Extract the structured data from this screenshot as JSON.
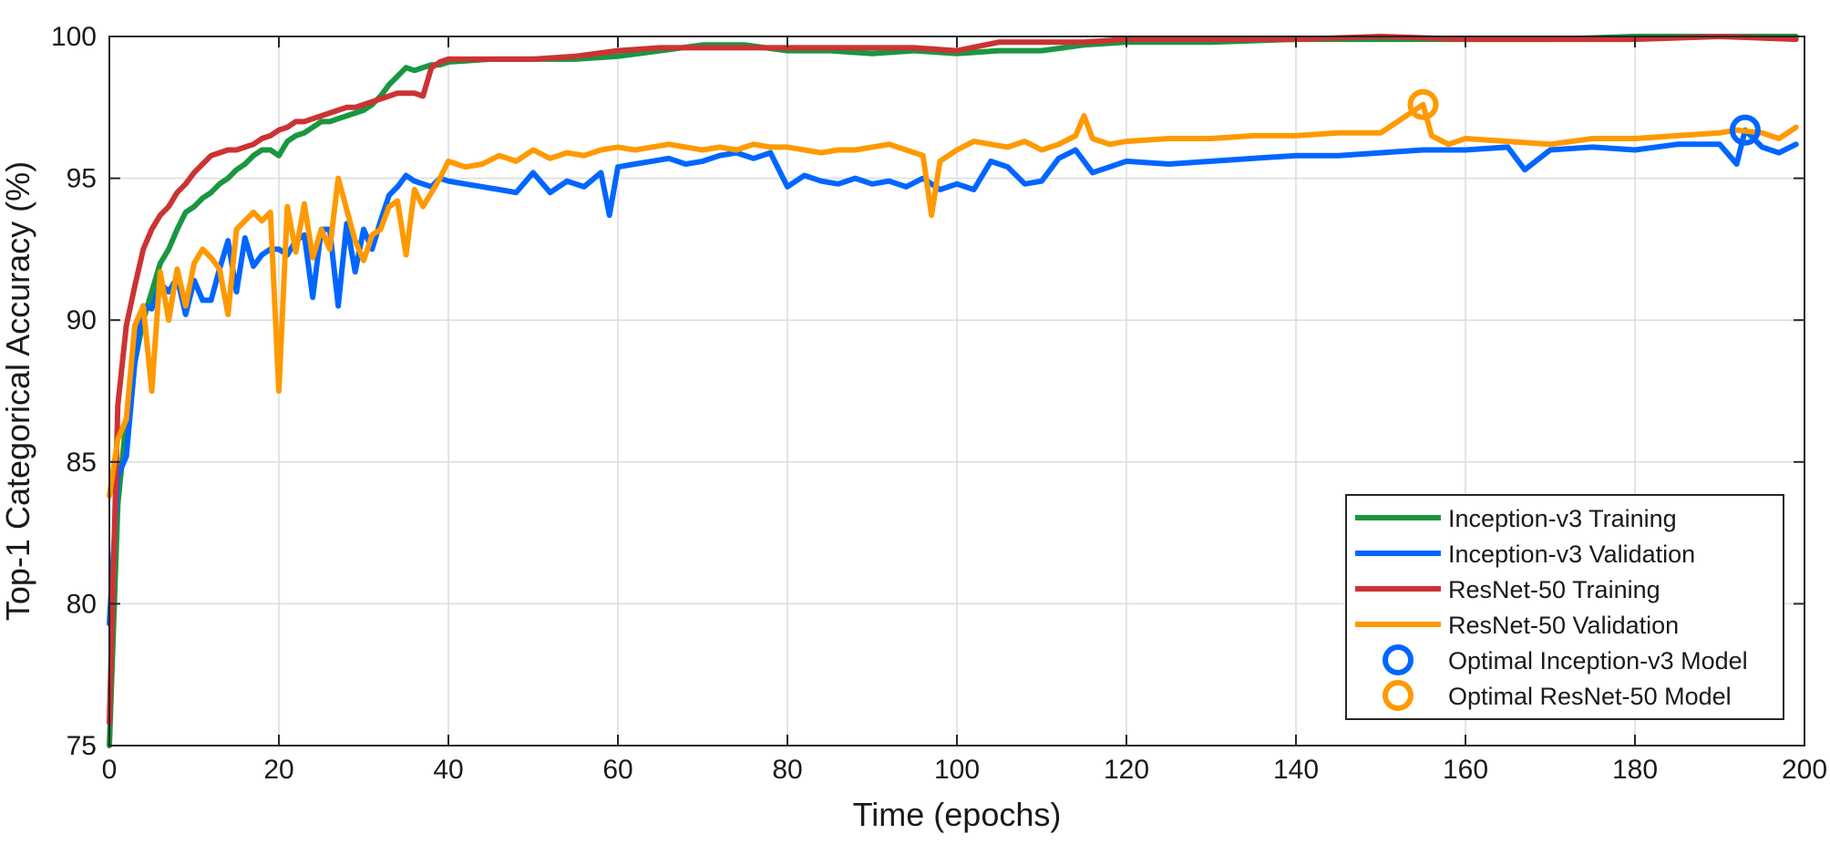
{
  "chart_data": {
    "type": "line",
    "title": "",
    "xlabel": "Time (epochs)",
    "ylabel": "Top-1 Categorical Accuracy (%)",
    "xlim": [
      0,
      200
    ],
    "ylim": [
      75,
      100
    ],
    "xticks": [
      0,
      20,
      40,
      60,
      80,
      100,
      120,
      140,
      160,
      180,
      200
    ],
    "yticks": [
      75,
      80,
      85,
      90,
      95,
      100
    ],
    "grid": true,
    "legend_position": "bottom-right",
    "colors": {
      "inception_training": "#1a9641",
      "inception_validation": "#0066ff",
      "resnet_training": "#cc3333",
      "resnet_validation": "#ff9900"
    },
    "series": [
      {
        "name": "Inception-v3 Training",
        "color": "#1a9641",
        "x": [
          0,
          1,
          2,
          3,
          4,
          5,
          6,
          7,
          8,
          9,
          10,
          11,
          12,
          13,
          14,
          15,
          16,
          17,
          18,
          19,
          20,
          21,
          22,
          23,
          24,
          25,
          26,
          27,
          28,
          29,
          30,
          31,
          32,
          33,
          34,
          35,
          36,
          37,
          38,
          39,
          40,
          45,
          50,
          55,
          60,
          65,
          70,
          75,
          80,
          85,
          90,
          95,
          100,
          105,
          110,
          115,
          120,
          130,
          140,
          150,
          160,
          170,
          180,
          190,
          199
        ],
        "y": [
          75.0,
          83.5,
          86.5,
          88.5,
          90.0,
          91.0,
          92.0,
          92.5,
          93.2,
          93.8,
          94.0,
          94.3,
          94.5,
          94.8,
          95.0,
          95.3,
          95.5,
          95.8,
          96.0,
          96.0,
          95.8,
          96.3,
          96.5,
          96.6,
          96.8,
          97.0,
          97.0,
          97.1,
          97.2,
          97.3,
          97.4,
          97.6,
          97.9,
          98.3,
          98.6,
          98.9,
          98.8,
          98.9,
          99.0,
          99.0,
          99.1,
          99.2,
          99.2,
          99.2,
          99.3,
          99.5,
          99.7,
          99.7,
          99.5,
          99.5,
          99.4,
          99.5,
          99.4,
          99.5,
          99.5,
          99.7,
          99.8,
          99.8,
          99.9,
          99.9,
          99.9,
          99.9,
          100.0,
          100.0,
          100.0
        ]
      },
      {
        "name": "Inception-v3 Validation",
        "color": "#0066ff",
        "x": [
          0,
          1,
          2,
          3,
          4,
          5,
          6,
          7,
          8,
          9,
          10,
          11,
          12,
          13,
          14,
          15,
          16,
          17,
          18,
          19,
          20,
          21,
          22,
          23,
          24,
          25,
          26,
          27,
          28,
          29,
          30,
          31,
          32,
          33,
          34,
          35,
          36,
          37,
          38,
          39,
          40,
          42,
          44,
          46,
          48,
          50,
          52,
          54,
          56,
          58,
          59,
          60,
          62,
          64,
          66,
          68,
          70,
          72,
          74,
          76,
          78,
          80,
          82,
          84,
          86,
          88,
          90,
          92,
          94,
          96,
          98,
          100,
          102,
          104,
          106,
          108,
          110,
          112,
          114,
          116,
          118,
          120,
          125,
          130,
          135,
          140,
          145,
          150,
          155,
          160,
          165,
          167,
          170,
          175,
          180,
          185,
          190,
          192,
          193,
          195,
          197,
          199
        ],
        "y": [
          79.3,
          84.5,
          85.2,
          88.5,
          90.5,
          90.4,
          91.3,
          91.0,
          91.5,
          90.2,
          91.4,
          90.7,
          90.7,
          91.8,
          92.8,
          91.0,
          92.9,
          91.9,
          92.3,
          92.5,
          92.5,
          92.3,
          92.8,
          93.0,
          90.8,
          93.2,
          93.2,
          90.5,
          93.4,
          91.7,
          93.2,
          92.5,
          93.5,
          94.4,
          94.7,
          95.1,
          94.9,
          94.8,
          94.7,
          95.0,
          94.9,
          94.8,
          94.7,
          94.6,
          94.5,
          95.2,
          94.5,
          94.9,
          94.7,
          95.2,
          93.7,
          95.4,
          95.5,
          95.6,
          95.7,
          95.5,
          95.6,
          95.8,
          95.9,
          95.7,
          95.9,
          94.7,
          95.1,
          94.9,
          94.8,
          95.0,
          94.8,
          94.9,
          94.7,
          95.0,
          94.6,
          94.8,
          94.6,
          95.6,
          95.4,
          94.8,
          94.9,
          95.7,
          96.0,
          95.2,
          95.4,
          95.6,
          95.5,
          95.6,
          95.7,
          95.8,
          95.8,
          95.9,
          96.0,
          96.0,
          96.1,
          95.3,
          96.0,
          96.1,
          96.0,
          96.2,
          96.2,
          95.5,
          96.7,
          96.1,
          95.9,
          96.2
        ]
      },
      {
        "name": "ResNet-50 Training",
        "color": "#cc3333",
        "x": [
          0,
          1,
          2,
          3,
          4,
          5,
          6,
          7,
          8,
          9,
          10,
          11,
          12,
          13,
          14,
          15,
          16,
          17,
          18,
          19,
          20,
          21,
          22,
          23,
          24,
          25,
          26,
          27,
          28,
          29,
          30,
          31,
          32,
          33,
          34,
          35,
          36,
          37,
          38,
          39,
          40,
          45,
          50,
          55,
          60,
          65,
          70,
          75,
          80,
          85,
          90,
          95,
          100,
          105,
          110,
          115,
          120,
          130,
          140,
          150,
          160,
          170,
          180,
          190,
          199
        ],
        "y": [
          75.8,
          87.0,
          89.8,
          91.2,
          92.5,
          93.2,
          93.7,
          94.0,
          94.5,
          94.8,
          95.2,
          95.5,
          95.8,
          95.9,
          96.0,
          96.0,
          96.1,
          96.2,
          96.4,
          96.5,
          96.7,
          96.8,
          97.0,
          97.0,
          97.1,
          97.2,
          97.3,
          97.4,
          97.5,
          97.5,
          97.6,
          97.7,
          97.8,
          97.9,
          98.0,
          98.0,
          98.0,
          97.9,
          98.9,
          99.1,
          99.2,
          99.2,
          99.2,
          99.3,
          99.5,
          99.6,
          99.6,
          99.6,
          99.6,
          99.6,
          99.6,
          99.6,
          99.5,
          99.8,
          99.8,
          99.8,
          99.9,
          99.9,
          99.9,
          100.0,
          99.9,
          99.9,
          99.9,
          100.0,
          99.9
        ]
      },
      {
        "name": "ResNet-50 Validation",
        "color": "#ff9900",
        "x": [
          0,
          1,
          2,
          3,
          4,
          5,
          6,
          7,
          8,
          9,
          10,
          11,
          12,
          13,
          14,
          15,
          16,
          17,
          18,
          19,
          20,
          21,
          22,
          23,
          24,
          25,
          26,
          27,
          28,
          29,
          30,
          31,
          32,
          33,
          34,
          35,
          36,
          37,
          38,
          39,
          40,
          42,
          44,
          46,
          48,
          50,
          52,
          54,
          56,
          58,
          60,
          62,
          64,
          66,
          68,
          70,
          72,
          74,
          76,
          78,
          80,
          82,
          84,
          86,
          88,
          90,
          92,
          94,
          96,
          97,
          98,
          100,
          102,
          104,
          106,
          108,
          110,
          112,
          114,
          115,
          116,
          118,
          120,
          125,
          130,
          135,
          140,
          145,
          150,
          155,
          156,
          158,
          160,
          165,
          170,
          175,
          180,
          185,
          190,
          192,
          195,
          197,
          199
        ],
        "y": [
          83.8,
          85.8,
          86.5,
          89.8,
          90.5,
          87.5,
          91.7,
          90.0,
          91.8,
          90.5,
          92.0,
          92.5,
          92.2,
          91.8,
          90.2,
          93.2,
          93.5,
          93.8,
          93.5,
          93.8,
          87.5,
          94.0,
          92.4,
          94.1,
          92.2,
          93.2,
          92.5,
          95.0,
          93.9,
          92.8,
          92.1,
          93.0,
          93.2,
          94.0,
          94.2,
          92.3,
          94.6,
          94.0,
          94.5,
          95.0,
          95.6,
          95.4,
          95.5,
          95.8,
          95.6,
          96.0,
          95.7,
          95.9,
          95.8,
          96.0,
          96.1,
          96.0,
          96.1,
          96.2,
          96.1,
          96.0,
          96.1,
          96.0,
          96.2,
          96.1,
          96.1,
          96.0,
          95.9,
          96.0,
          96.0,
          96.1,
          96.2,
          96.0,
          95.8,
          93.7,
          95.6,
          96.0,
          96.3,
          96.2,
          96.1,
          96.3,
          96.0,
          96.2,
          96.5,
          97.2,
          96.4,
          96.2,
          96.3,
          96.4,
          96.4,
          96.5,
          96.5,
          96.6,
          96.6,
          97.6,
          96.5,
          96.2,
          96.4,
          96.3,
          96.2,
          96.4,
          96.4,
          96.5,
          96.6,
          96.7,
          96.6,
          96.4,
          96.8
        ]
      }
    ],
    "markers": [
      {
        "name": "Optimal Inception-v3 Model",
        "x": 193,
        "y": 96.7,
        "color": "#0066ff"
      },
      {
        "name": "Optimal ResNet-50 Model",
        "x": 155,
        "y": 97.6,
        "color": "#ff9900"
      }
    ]
  }
}
